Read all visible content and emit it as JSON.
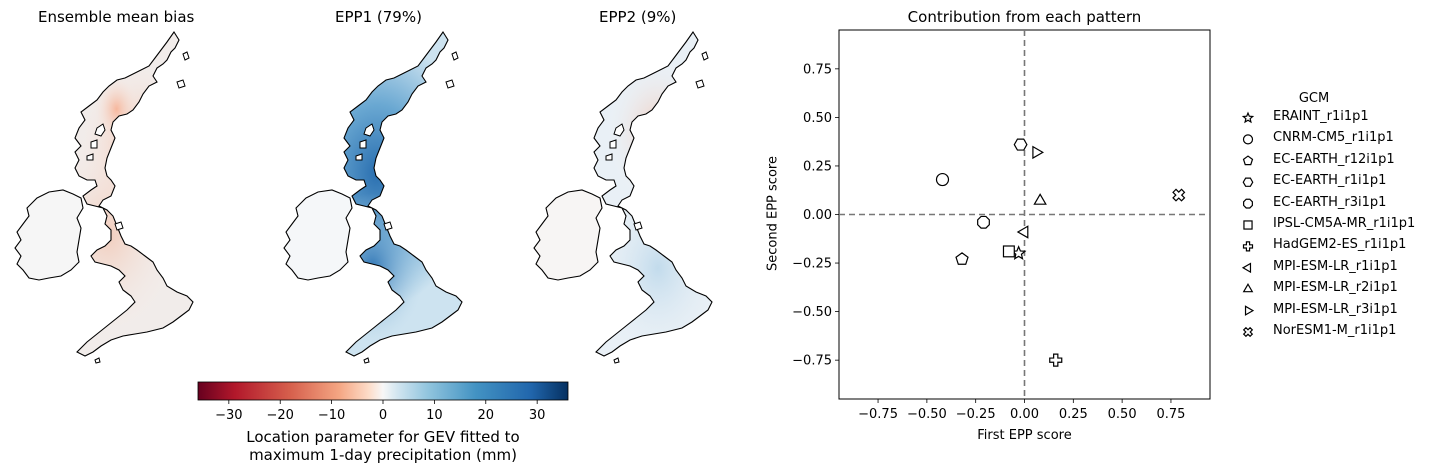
{
  "maps": [
    {
      "title": "Ensemble mean bias"
    },
    {
      "title": "EPP1 (79%)"
    },
    {
      "title": "EPP2 (9%)"
    }
  ],
  "colorbar": {
    "ticks": [
      "−30",
      "−20",
      "−10",
      "0",
      "10",
      "20",
      "30"
    ],
    "tick_values": [
      -30,
      -20,
      -10,
      0,
      10,
      20,
      30
    ],
    "range": [
      -36,
      36
    ],
    "label_line1": "Location parameter for GEV fitted to",
    "label_line2": "maximum 1-day precipitation (mm)",
    "colormap": "RdBu"
  },
  "chart_data": {
    "type": "scatter",
    "title": "Contribution from each pattern",
    "xlabel": "First EPP score",
    "ylabel": "Second EPP score",
    "xlim": [
      -0.95,
      0.95
    ],
    "ylim": [
      -0.95,
      0.95
    ],
    "xticks": [
      -0.75,
      -0.5,
      -0.25,
      0.0,
      0.25,
      0.5,
      0.75
    ],
    "yticks": [
      -0.75,
      -0.5,
      -0.25,
      0.0,
      0.25,
      0.5,
      0.75
    ],
    "xtick_labels": [
      "−0.75",
      "−0.50",
      "−0.25",
      "0.00",
      "0.25",
      "0.50",
      "0.75"
    ],
    "ytick_labels": [
      "−0.75",
      "−0.50",
      "−0.25",
      "0.00",
      "0.25",
      "0.50",
      "0.75"
    ],
    "reference_lines": "dashed lines at x=0 and y=0",
    "grid": false,
    "legend_title": "GCM",
    "legend_position": "right",
    "points": [
      {
        "name": "ERAINT_r1i1p1",
        "marker": "star",
        "x": -0.03,
        "y": -0.2
      },
      {
        "name": "CNRM-CM5_r1i1p1",
        "marker": "circle",
        "x": -0.42,
        "y": 0.18
      },
      {
        "name": "EC-EARTH_r12i1p1",
        "marker": "pentagon",
        "x": -0.32,
        "y": -0.23
      },
      {
        "name": "EC-EARTH_r1i1p1",
        "marker": "hexagon",
        "x": -0.02,
        "y": 0.36
      },
      {
        "name": "EC-EARTH_r3i1p1",
        "marker": "octagon",
        "x": -0.21,
        "y": -0.04
      },
      {
        "name": "IPSL-CM5A-MR_r1i1p1",
        "marker": "square",
        "x": -0.08,
        "y": -0.19
      },
      {
        "name": "HadGEM2-ES_r1i1p1",
        "marker": "plus",
        "x": 0.16,
        "y": -0.75
      },
      {
        "name": "MPI-ESM-LR_r1i1p1",
        "marker": "triangle-left",
        "x": 0.0,
        "y": -0.09
      },
      {
        "name": "MPI-ESM-LR_r2i1p1",
        "marker": "triangle-up",
        "x": 0.08,
        "y": 0.07
      },
      {
        "name": "MPI-ESM-LR_r3i1p1",
        "marker": "triangle-right",
        "x": 0.06,
        "y": 0.32
      },
      {
        "name": "NorESM1-M_r1i1p1",
        "marker": "x",
        "x": 0.79,
        "y": 0.1
      }
    ]
  }
}
